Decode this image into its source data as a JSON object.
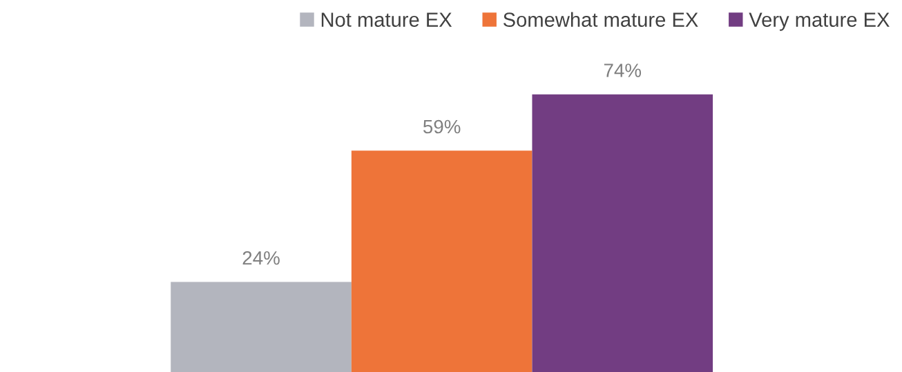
{
  "chart_data": {
    "type": "bar",
    "categories": [
      null
    ],
    "series": [
      {
        "name": "Not mature EX",
        "color": "#b3b5be",
        "values": [
          24
        ],
        "value_labels": [
          "24%"
        ]
      },
      {
        "name": "Somewhat mature EX",
        "color": "#ee7439",
        "values": [
          59
        ],
        "value_labels": [
          "59%"
        ]
      },
      {
        "name": "Very mature EX",
        "color": "#723d82",
        "values": [
          74
        ],
        "value_labels": [
          "74%"
        ]
      }
    ],
    "legend": "top right",
    "grid": false
  }
}
